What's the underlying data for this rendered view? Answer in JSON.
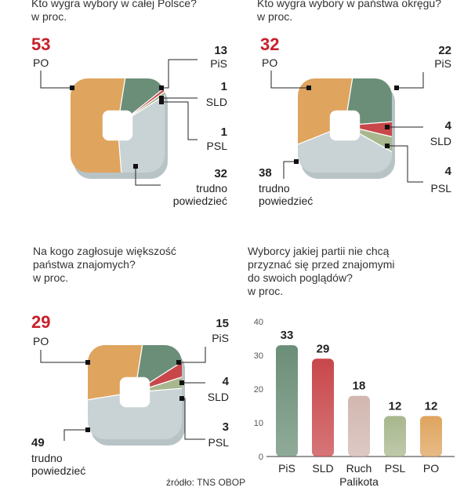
{
  "colors": {
    "PO": "#dfa45e",
    "PiS": "#6b8e78",
    "SLD": "#c8474a",
    "PSL": "#a8b78e",
    "undecided": "#c9d3d6",
    "accent_red": "#c8202a",
    "Ruch Palikota": "#d2b7b0"
  },
  "panel1": {
    "title": "Kto wygra wybory w całej Polsce?\nw proc.",
    "po_value": "53",
    "po_label": "PO",
    "pis_value": "13",
    "pis_label": "PiS",
    "sld_value": "1",
    "sld_label": "SLD",
    "psl_value": "1",
    "psl_label": "PSL",
    "und_value": "32",
    "und_label": "trudno\npowiedzieć"
  },
  "panel2": {
    "title": "Kto wygra wybory w państwa okręgu?\nw proc.",
    "po_value": "32",
    "po_label": "PO",
    "pis_value": "22",
    "pis_label": "PiS",
    "sld_value": "4",
    "sld_label": "SLD",
    "psl_value": "4",
    "psl_label": "PSL",
    "und_value": "38",
    "und_label": "trudno\npowiedzieć"
  },
  "panel3": {
    "title": "Na kogo zagłosuje większość\npaństwa znajomych?\nw proc.",
    "po_value": "29",
    "po_label": "PO",
    "pis_value": "15",
    "pis_label": "PiS",
    "sld_value": "4",
    "sld_label": "SLD",
    "psl_value": "3",
    "psl_label": "PSL",
    "und_value": "49",
    "und_label": "trudno\npowiedzieć"
  },
  "panel4": {
    "title": "Wyborcy jakiej partii nie chcą\nprzyznać się przed znajomymi\ndo swoich poglądów?\nw proc."
  },
  "source": "źródło: TNS OBOP",
  "chart_data": [
    {
      "type": "pie",
      "title": "Kto wygra wybory w całej Polsce?",
      "subtitle": "w proc.",
      "labels": [
        "PO",
        "PiS",
        "SLD",
        "PSL",
        "trudno powiedzieć"
      ],
      "values": [
        53,
        13,
        1,
        1,
        32
      ]
    },
    {
      "type": "pie",
      "title": "Kto wygra wybory w państwa okręgu?",
      "subtitle": "w proc.",
      "labels": [
        "PO",
        "PiS",
        "SLD",
        "PSL",
        "trudno powiedzieć"
      ],
      "values": [
        32,
        22,
        4,
        4,
        38
      ]
    },
    {
      "type": "pie",
      "title": "Na kogo zagłosuje większość państwa znajomych?",
      "subtitle": "w proc.",
      "labels": [
        "PO",
        "PiS",
        "SLD",
        "PSL",
        "trudno powiedzieć"
      ],
      "values": [
        29,
        15,
        4,
        3,
        49
      ]
    },
    {
      "type": "bar",
      "title": "Wyborcy jakiej partii nie chcą przyznać się przed znajomymi do swoich poglądów?",
      "subtitle": "w proc.",
      "categories": [
        "PiS",
        "SLD",
        "Ruch Palikota",
        "PSL",
        "PO"
      ],
      "values": [
        33,
        29,
        18,
        12,
        12
      ],
      "ylim": [
        0,
        40
      ],
      "yticks": [
        0,
        10,
        20,
        30,
        40
      ],
      "grid": false
    }
  ]
}
